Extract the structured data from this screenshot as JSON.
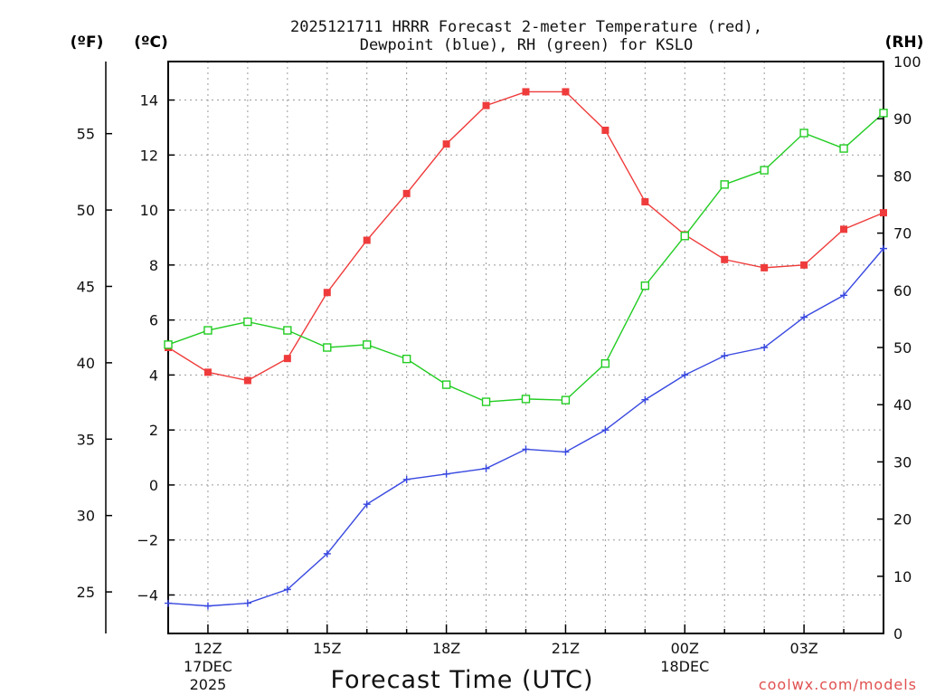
{
  "chart_data": {
    "type": "line",
    "title_line1": "2025121711 HRRR Forecast 2-meter Temperature (red),",
    "title_line2": "Dewpoint (blue), RH (green) for KSLO",
    "xlabel": "Forecast Time (UTC)",
    "credit": "coolwx.com/models",
    "unit_left_f": "(ºF)",
    "unit_left_c": "(ºC)",
    "unit_right": "(RH)",
    "x_hours": [
      11,
      12,
      13,
      14,
      15,
      16,
      17,
      18,
      19,
      20,
      21,
      22,
      23,
      24,
      25,
      26,
      27,
      28,
      29
    ],
    "xlim": [
      11,
      29
    ],
    "x_ticks": [
      {
        "hour": 12,
        "lines": [
          "12Z",
          "17DEC",
          "2025"
        ]
      },
      {
        "hour": 15,
        "lines": [
          "15Z"
        ]
      },
      {
        "hour": 18,
        "lines": [
          "18Z"
        ]
      },
      {
        "hour": 21,
        "lines": [
          "21Z"
        ]
      },
      {
        "hour": 24,
        "lines": [
          "00Z",
          "18DEC"
        ]
      },
      {
        "hour": 27,
        "lines": [
          "03Z"
        ]
      }
    ],
    "c_axis": {
      "ylim": [
        -5.4,
        15.4
      ],
      "ticks": [
        -4,
        -2,
        0,
        2,
        4,
        6,
        8,
        10,
        12,
        14
      ],
      "tick_labels": [
        "−4",
        "−2",
        "0",
        "2",
        "4",
        "6",
        "8",
        "10",
        "12",
        "14"
      ]
    },
    "f_axis": {
      "ticks": [
        25,
        30,
        35,
        40,
        45,
        50,
        55
      ],
      "tick_labels": [
        "25",
        "30",
        "35",
        "40",
        "45",
        "50",
        "55"
      ]
    },
    "rh_axis": {
      "ylim": [
        0,
        100
      ],
      "ticks": [
        0,
        10,
        20,
        30,
        40,
        50,
        60,
        70,
        80,
        90,
        100
      ],
      "tick_labels": [
        "0",
        "10",
        "20",
        "30",
        "40",
        "50",
        "60",
        "70",
        "80",
        "90",
        "100"
      ]
    },
    "series": [
      {
        "name": "Temperature",
        "axis": "C",
        "color": "#ef3b3b",
        "marker": "filled-square",
        "values": [
          5.0,
          4.1,
          3.8,
          4.6,
          7.0,
          8.9,
          10.6,
          12.4,
          13.8,
          14.3,
          14.3,
          12.9,
          10.3,
          9.1,
          8.2,
          7.9,
          8.0,
          9.3,
          9.9
        ]
      },
      {
        "name": "Dewpoint",
        "axis": "C",
        "color": "#3848e0",
        "marker": "plus",
        "values": [
          -4.3,
          -4.4,
          -4.3,
          -3.8,
          -2.5,
          -0.7,
          0.2,
          0.4,
          0.6,
          1.3,
          1.2,
          2.0,
          3.1,
          4.0,
          4.7,
          5.0,
          6.1,
          6.9,
          8.6
        ]
      },
      {
        "name": "RH",
        "axis": "RH",
        "color": "#22cc22",
        "marker": "open-square",
        "values": [
          50.5,
          53.0,
          54.5,
          53.0,
          50.0,
          50.5,
          48.0,
          43.5,
          40.5,
          41.0,
          40.8,
          47.2,
          60.8,
          69.5,
          78.5,
          81.0,
          87.5,
          84.8,
          91.0
        ]
      }
    ]
  }
}
